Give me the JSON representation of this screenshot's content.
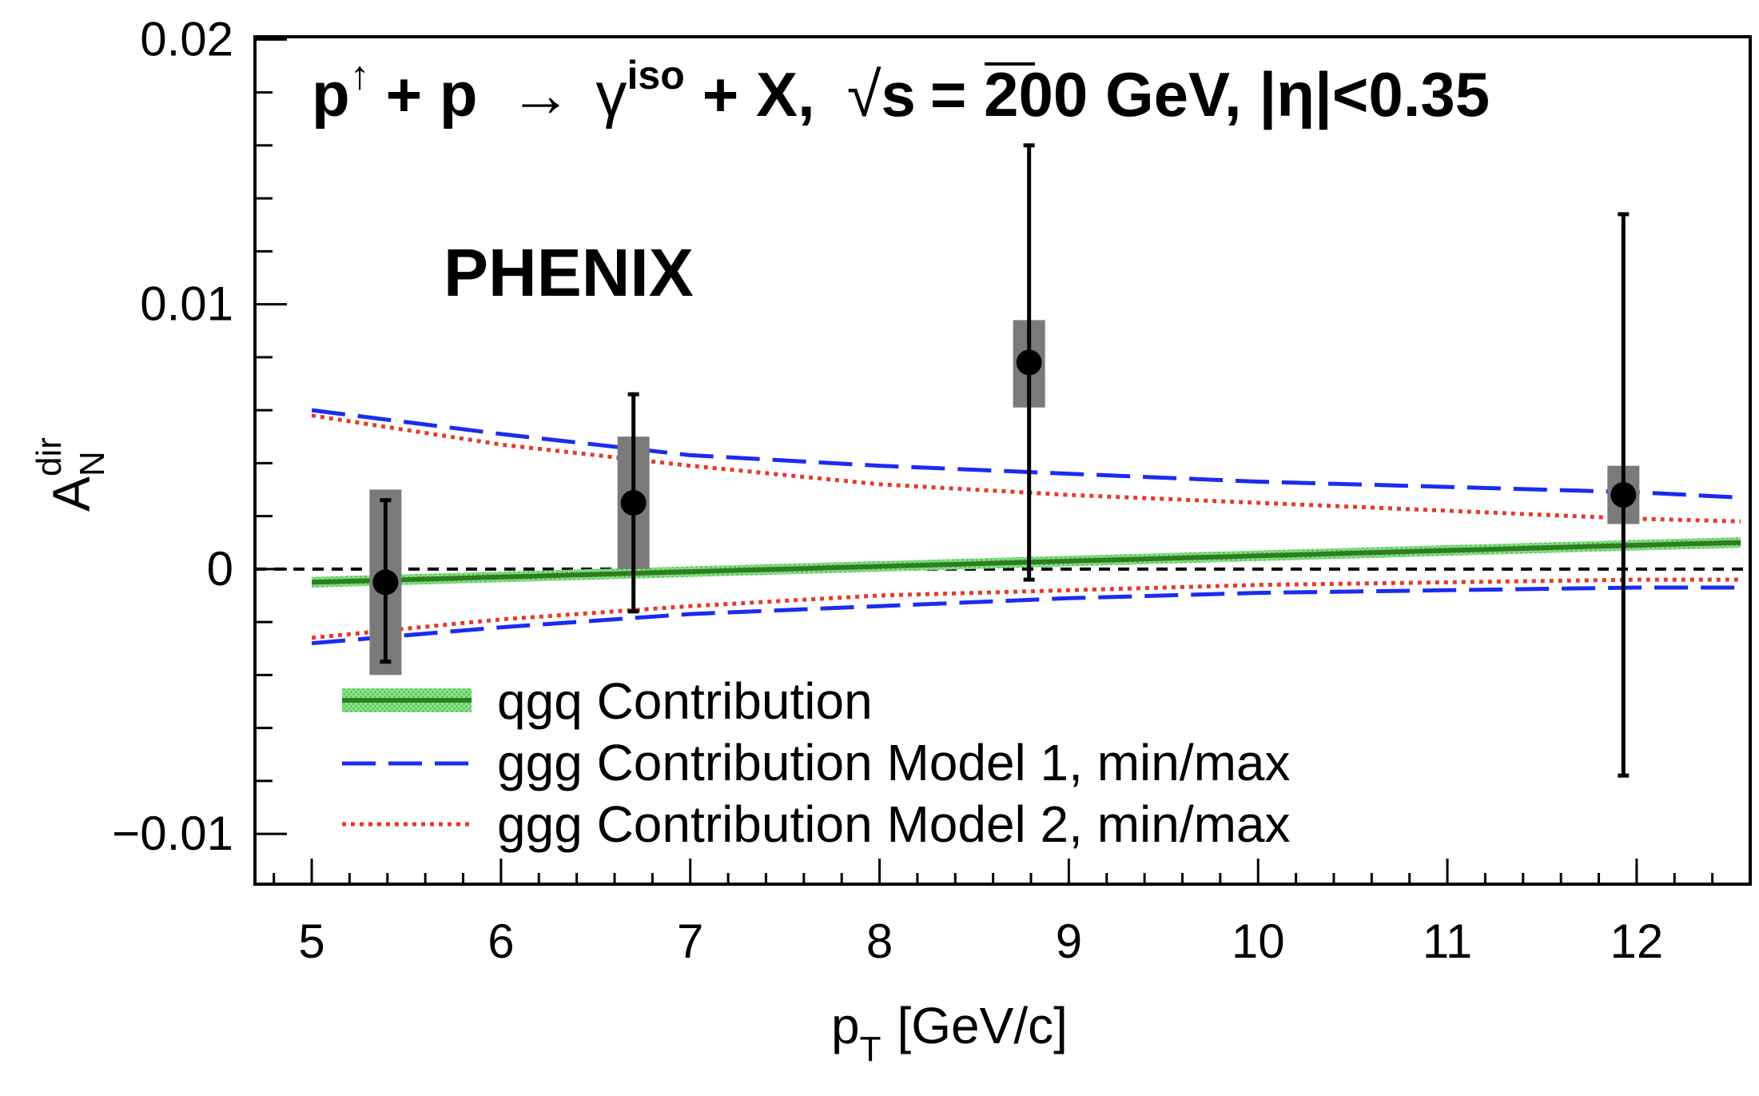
{
  "chart_data": {
    "type": "scatter",
    "title": {
      "p": "p",
      "arrow": "↑",
      "plus1": "+ p",
      "to": "→",
      "gamma": "γ",
      "iso": "iso",
      "plus2": "+ X,",
      "sqrt": "√",
      "s": "s",
      "energy": "= 200 GeV,",
      "eta": "|η|<0.35"
    },
    "experiment": "PHENIX",
    "xlabel": {
      "main": "p",
      "sub": "T",
      "rest": "[GeV/c]"
    },
    "ylabel": {
      "main": "A",
      "sup": "dir",
      "sub": "N"
    },
    "xlim": [
      4.7,
      12.6
    ],
    "ylim": [
      -0.0119,
      0.0201
    ],
    "xticks": [
      5,
      6,
      7,
      8,
      9,
      10,
      11,
      12
    ],
    "xtick_labels": [
      "5",
      "6",
      "7",
      "8",
      "9",
      "10",
      "11",
      "12"
    ],
    "yticks": [
      -0.01,
      0,
      0.01,
      0.02
    ],
    "ytick_labels": [
      "−0.01",
      "0",
      "0.01",
      "0.02"
    ],
    "data_points": [
      {
        "x": 5.39,
        "y": -0.0005,
        "stat_low": -0.0035,
        "stat_high": 0.0026,
        "sys_low": -0.004,
        "sys_high": 0.003
      },
      {
        "x": 6.7,
        "y": 0.0025,
        "stat_low": -0.0016,
        "stat_high": 0.0066,
        "sys_low": 0.0,
        "sys_high": 0.005
      },
      {
        "x": 8.79,
        "y": 0.0078,
        "stat_low": -0.0004,
        "stat_high": 0.016,
        "sys_low": 0.0061,
        "sys_high": 0.0094
      },
      {
        "x": 11.93,
        "y": 0.0028,
        "stat_low": -0.0078,
        "stat_high": 0.0134,
        "sys_low": 0.0017,
        "sys_high": 0.0039
      }
    ],
    "series": [
      {
        "name": "qgq Contribution",
        "style": "solid-band",
        "color": "#2e7d1e",
        "band_color": "#5fd35f",
        "x": [
          5,
          6,
          7,
          8,
          9,
          10,
          11,
          12,
          12.55
        ],
        "y": [
          -0.0005,
          -0.0003,
          -0.0001,
          0.0001,
          0.0003,
          0.0005,
          0.0007,
          0.0009,
          0.001
        ],
        "band": 0.0002
      },
      {
        "name": "ggg Contribution Model 1, min/max",
        "style": "dashed",
        "color": "#1a2cf0",
        "x": [
          5,
          6,
          7,
          8,
          9,
          10,
          11,
          12,
          12.55
        ],
        "y_max": [
          0.006,
          0.0051,
          0.0043,
          0.0039,
          0.0036,
          0.0033,
          0.0031,
          0.0029,
          0.0027
        ],
        "y_min": [
          -0.0028,
          -0.0022,
          -0.0017,
          -0.0014,
          -0.0011,
          -0.0009,
          -0.0008,
          -0.0007,
          -0.0007
        ]
      },
      {
        "name": "ggg Contribution Model 2, min/max",
        "style": "dotted",
        "color": "#e53a2b",
        "x": [
          5,
          6,
          7,
          8,
          9,
          10,
          11,
          12,
          12.55
        ],
        "y_max": [
          0.0058,
          0.0047,
          0.0039,
          0.0032,
          0.0028,
          0.0025,
          0.0022,
          0.0019,
          0.0018
        ],
        "y_min": [
          -0.0026,
          -0.0019,
          -0.0014,
          -0.001,
          -0.0008,
          -0.0006,
          -0.0005,
          -0.0004,
          -0.0004
        ]
      }
    ],
    "legend": [
      {
        "label": "qgq Contribution"
      },
      {
        "label": "ggg Contribution Model 1, min/max"
      },
      {
        "label": "ggg Contribution Model 2, min/max"
      }
    ],
    "reference_line": {
      "y": 0,
      "style": "dashed",
      "color": "#000000"
    }
  }
}
